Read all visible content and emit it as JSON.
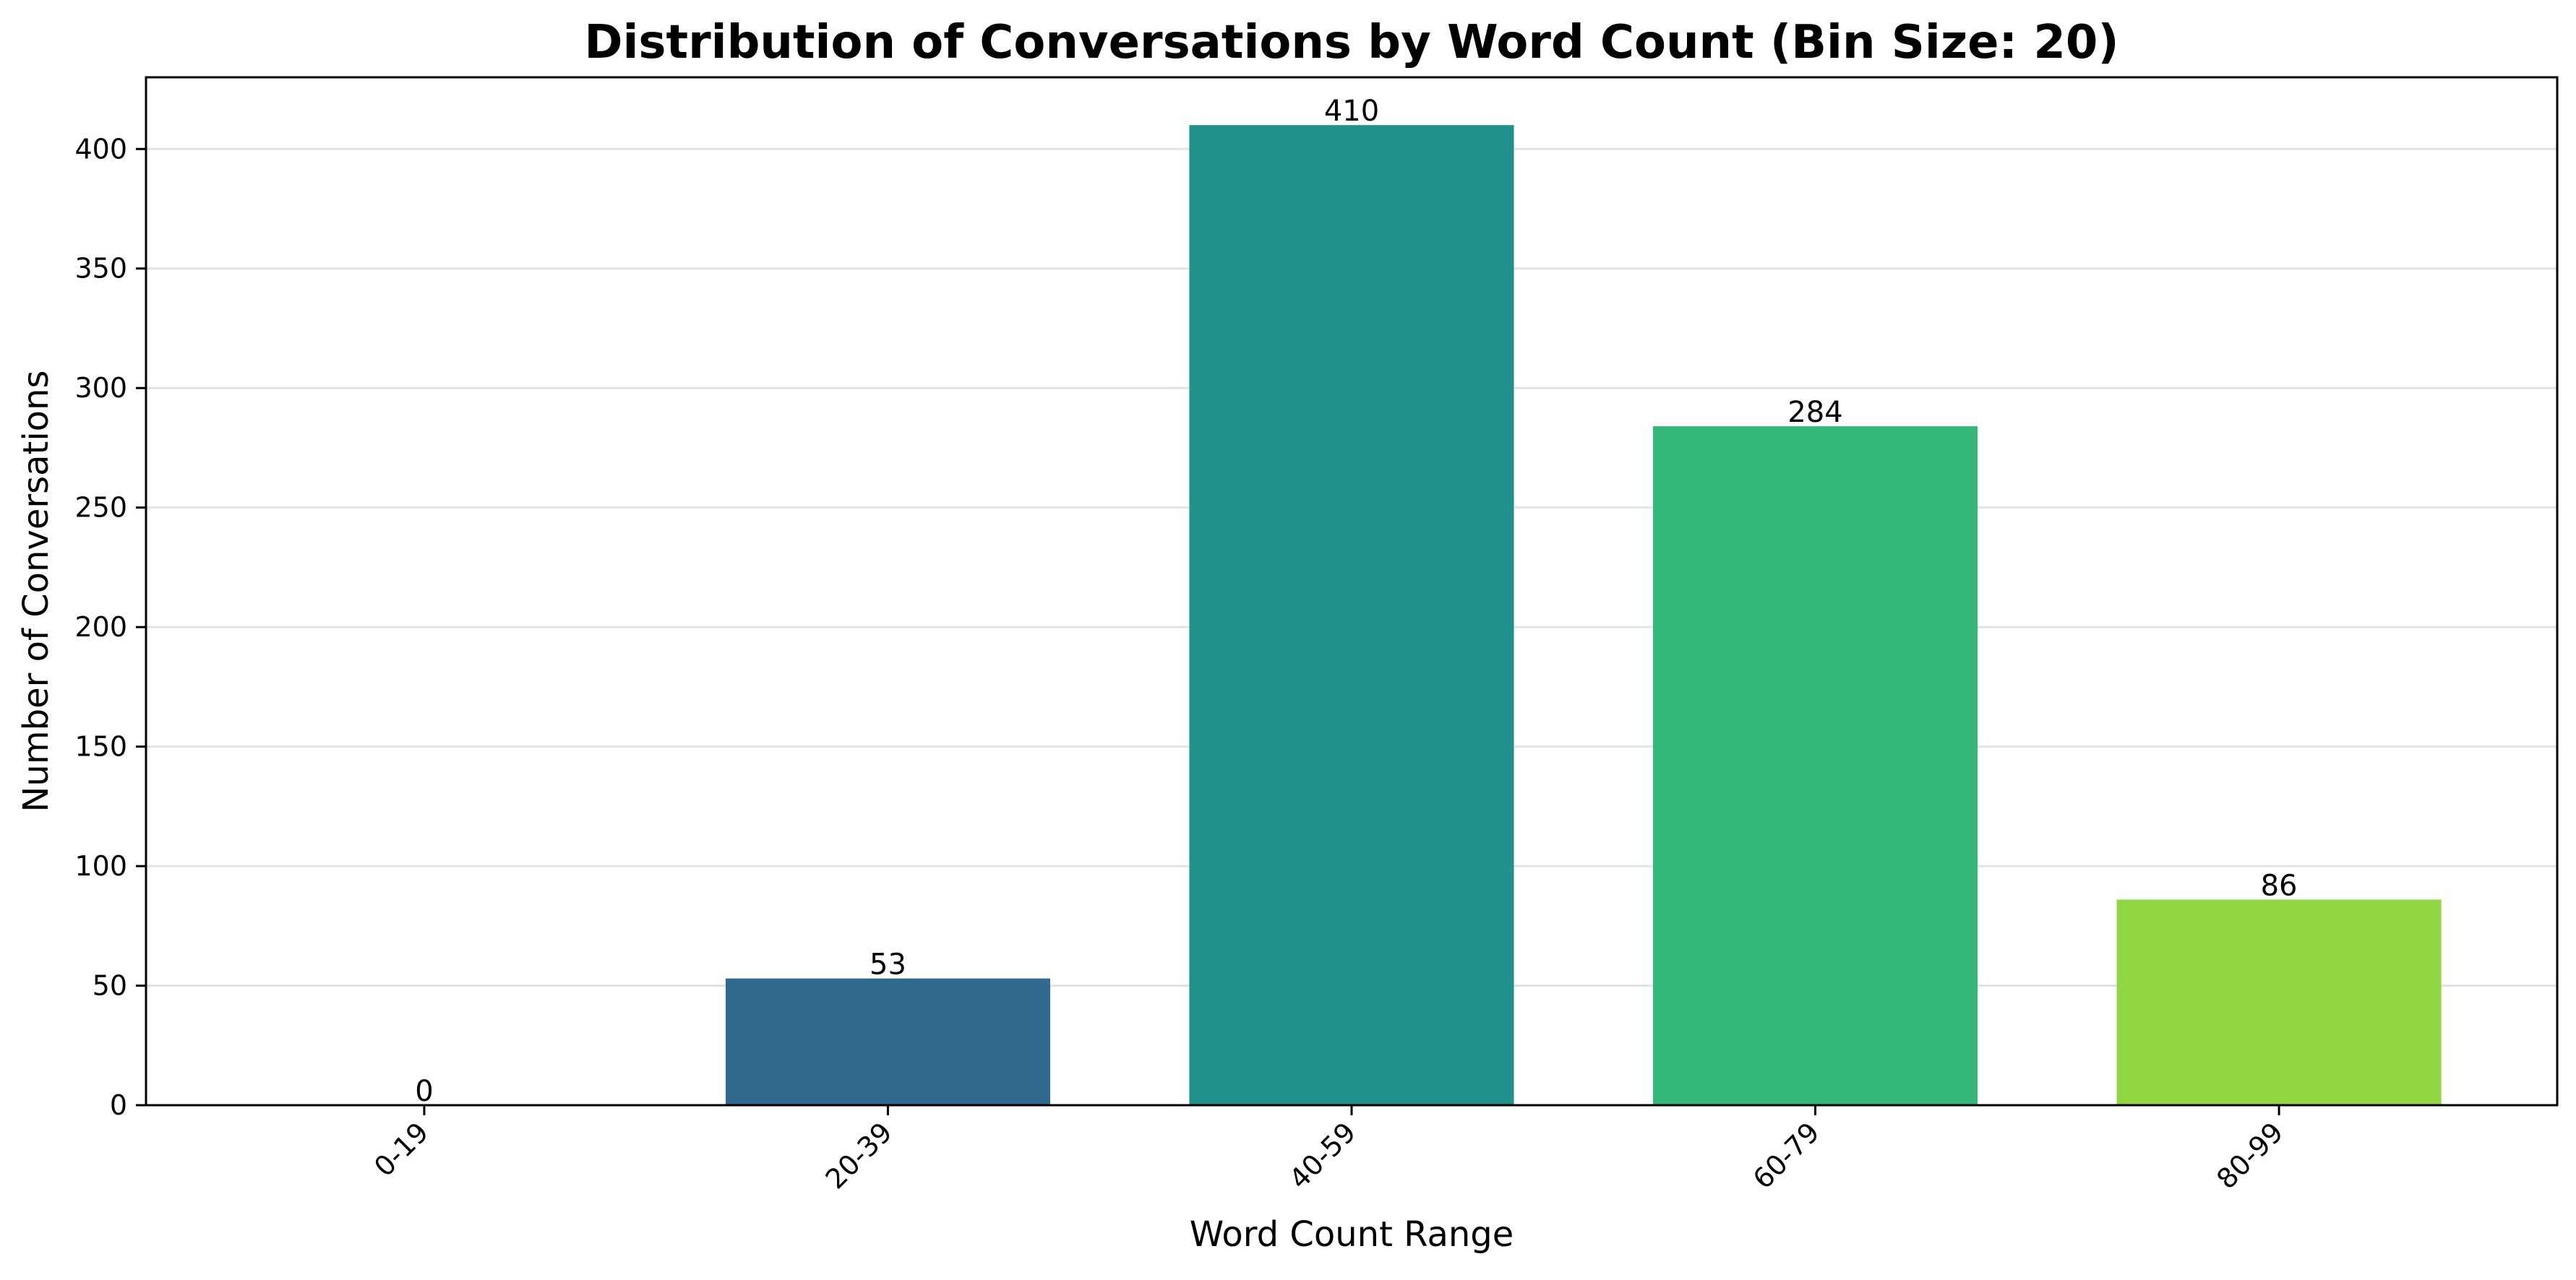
{
  "chart_data": {
    "type": "bar",
    "title": "Distribution of Conversations by Word Count (Bin Size: 20)",
    "xlabel": "Word Count Range",
    "ylabel": "Number of Conversations",
    "categories": [
      "0-19",
      "20-39",
      "40-59",
      "60-79",
      "80-99"
    ],
    "values": [
      0,
      53,
      410,
      284,
      86
    ],
    "data_labels": [
      "0",
      "53",
      "410",
      "284",
      "86"
    ],
    "colors": [
      "#440154",
      "#31688e",
      "#21918c",
      "#35b779",
      "#90d743"
    ],
    "ylim": [
      0,
      430
    ],
    "yticks": [
      0,
      50,
      100,
      150,
      200,
      250,
      300,
      350,
      400
    ],
    "ytick_labels": [
      "0",
      "50",
      "100",
      "150",
      "200",
      "250",
      "300",
      "350",
      "400"
    ],
    "grid": "y-axis horizontal lines",
    "legend": "none"
  }
}
